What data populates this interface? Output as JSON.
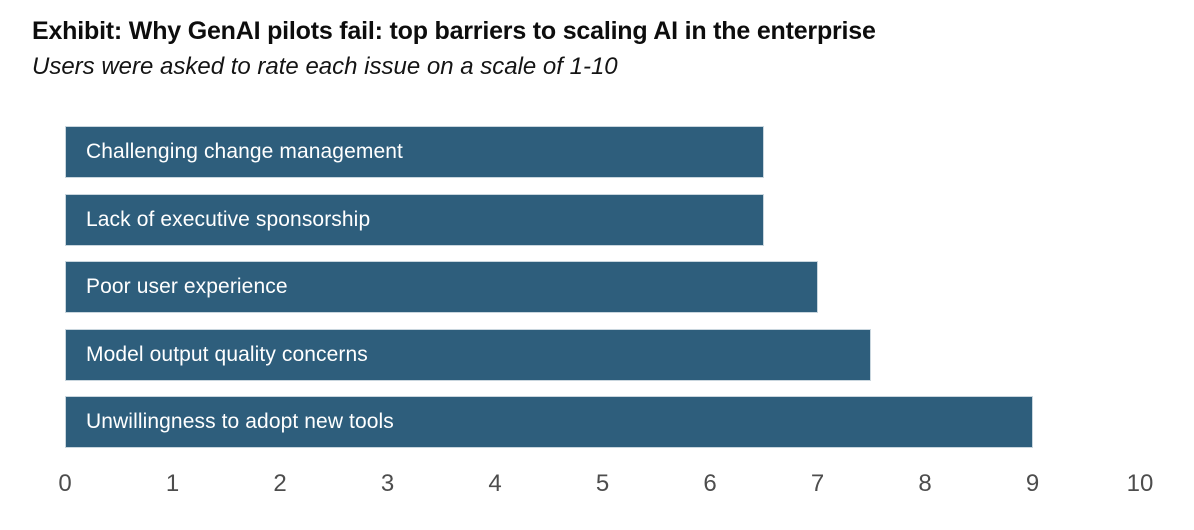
{
  "header": {
    "title": "Exhibit: Why GenAI pilots fail: top barriers to scaling AI in the enterprise",
    "subtitle": "Users were asked to rate each issue on a scale of 1-10"
  },
  "chart_data": {
    "type": "bar",
    "orientation": "horizontal",
    "title": "Exhibit: Why GenAI pilots fail: top barriers to scaling AI in the enterprise",
    "subtitle": "Users were asked to rate each issue on a scale of 1-10",
    "categories": [
      "Challenging change management",
      "Lack of executive sponsorship",
      "Poor user experience",
      "Model output quality concerns",
      "Unwillingness to adopt new tools"
    ],
    "values": [
      6.5,
      6.5,
      7,
      7.5,
      9
    ],
    "xlabel": "",
    "ylabel": "",
    "xlim": [
      0,
      10
    ],
    "x_ticks": [
      0,
      1,
      2,
      3,
      4,
      5,
      6,
      7,
      8,
      9,
      10
    ],
    "grid": false,
    "legend": false,
    "bar_color": "#2E5E7C",
    "bar_border_color": "#c9d6de",
    "bar_label_color": "#ffffff",
    "tick_color": "#4d4d4d"
  }
}
